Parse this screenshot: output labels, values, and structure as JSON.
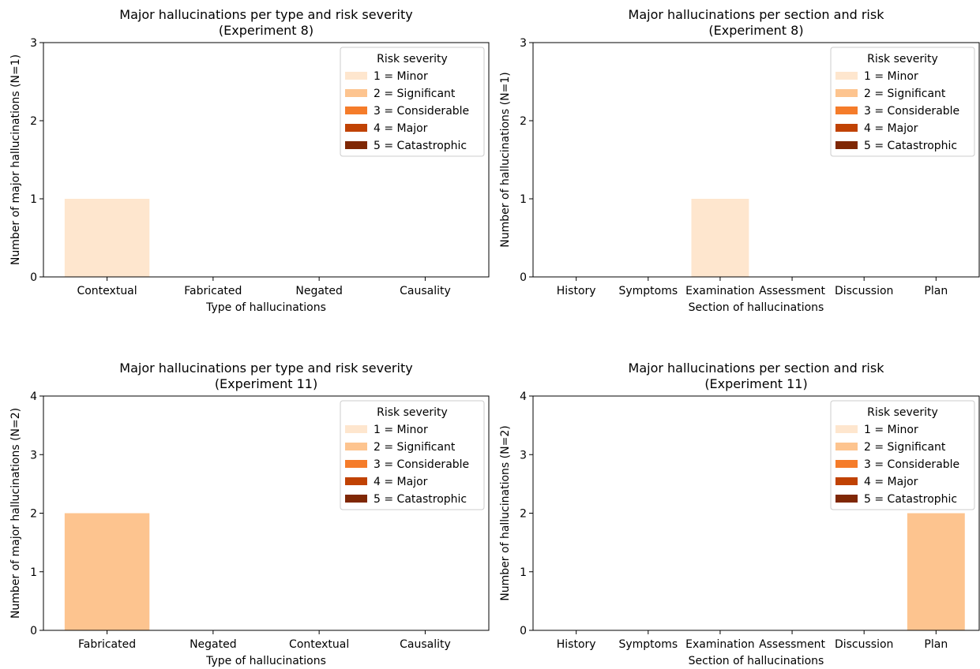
{
  "legend": {
    "title": "Risk severity",
    "entries": [
      {
        "label": "1 = Minor",
        "color": "#fee6ce"
      },
      {
        "label": "2 = Significant",
        "color": "#fdc48f"
      },
      {
        "label": "3 = Considerable",
        "color": "#f57c2a"
      },
      {
        "label": "4 = Major",
        "color": "#c04203"
      },
      {
        "label": "5 = Catastrophic",
        "color": "#7f2704"
      }
    ]
  },
  "chart_data": [
    {
      "type": "bar",
      "title": "Major hallucinations per type and risk severity\n(Experiment 8)",
      "xlabel": "Type of hallucinations",
      "ylabel": "Number of major hallucinations (N=1)",
      "categories": [
        "Contextual",
        "Fabricated",
        "Negated",
        "Causality"
      ],
      "ylim": [
        0,
        3
      ],
      "yticks": [
        0,
        1,
        2,
        3
      ],
      "stacked": true,
      "legend_position": "top-right",
      "series": [
        {
          "name": "1 = Minor",
          "values": [
            1,
            0,
            0,
            0
          ]
        },
        {
          "name": "2 = Significant",
          "values": [
            0,
            0,
            0,
            0
          ]
        },
        {
          "name": "3 = Considerable",
          "values": [
            0,
            0,
            0,
            0
          ]
        },
        {
          "name": "4 = Major",
          "values": [
            0,
            0,
            0,
            0
          ]
        },
        {
          "name": "5 = Catastrophic",
          "values": [
            0,
            0,
            0,
            0
          ]
        }
      ]
    },
    {
      "type": "bar",
      "title": "Major hallucinations per section and risk\n(Experiment 8)",
      "xlabel": "Section of hallucinations",
      "ylabel": "Number of hallucinations (N=1)",
      "categories": [
        "History",
        "Symptoms",
        "Examination",
        "Assessment",
        "Discussion",
        "Plan"
      ],
      "ylim": [
        0,
        3
      ],
      "yticks": [
        0,
        1,
        2,
        3
      ],
      "stacked": true,
      "legend_position": "top-right",
      "series": [
        {
          "name": "1 = Minor",
          "values": [
            0,
            0,
            1,
            0,
            0,
            0
          ]
        },
        {
          "name": "2 = Significant",
          "values": [
            0,
            0,
            0,
            0,
            0,
            0
          ]
        },
        {
          "name": "3 = Considerable",
          "values": [
            0,
            0,
            0,
            0,
            0,
            0
          ]
        },
        {
          "name": "4 = Major",
          "values": [
            0,
            0,
            0,
            0,
            0,
            0
          ]
        },
        {
          "name": "5 = Catastrophic",
          "values": [
            0,
            0,
            0,
            0,
            0,
            0
          ]
        }
      ]
    },
    {
      "type": "bar",
      "title": "Major hallucinations per type and risk severity\n(Experiment 11)",
      "xlabel": "Type of hallucinations",
      "ylabel": "Number of major hallucinations (N=2)",
      "categories": [
        "Fabricated",
        "Negated",
        "Contextual",
        "Causality"
      ],
      "ylim": [
        0,
        4
      ],
      "yticks": [
        0,
        1,
        2,
        3,
        4
      ],
      "stacked": true,
      "legend_position": "top-right",
      "series": [
        {
          "name": "1 = Minor",
          "values": [
            0,
            0,
            0,
            0
          ]
        },
        {
          "name": "2 = Significant",
          "values": [
            2,
            0,
            0,
            0
          ]
        },
        {
          "name": "3 = Considerable",
          "values": [
            0,
            0,
            0,
            0
          ]
        },
        {
          "name": "4 = Major",
          "values": [
            0,
            0,
            0,
            0
          ]
        },
        {
          "name": "5 = Catastrophic",
          "values": [
            0,
            0,
            0,
            0
          ]
        }
      ]
    },
    {
      "type": "bar",
      "title": "Major hallucinations per section and risk\n(Experiment 11)",
      "xlabel": "Section of hallucinations",
      "ylabel": "Number of hallucinations (N=2)",
      "categories": [
        "History",
        "Symptoms",
        "Examination",
        "Assessment",
        "Discussion",
        "Plan"
      ],
      "ylim": [
        0,
        4
      ],
      "yticks": [
        0,
        1,
        2,
        3,
        4
      ],
      "stacked": true,
      "legend_position": "top-right",
      "series": [
        {
          "name": "1 = Minor",
          "values": [
            0,
            0,
            0,
            0,
            0,
            0
          ]
        },
        {
          "name": "2 = Significant",
          "values": [
            0,
            0,
            0,
            0,
            0,
            2
          ]
        },
        {
          "name": "3 = Considerable",
          "values": [
            0,
            0,
            0,
            0,
            0,
            0
          ]
        },
        {
          "name": "4 = Major",
          "values": [
            0,
            0,
            0,
            0,
            0,
            0
          ]
        },
        {
          "name": "5 = Catastrophic",
          "values": [
            0,
            0,
            0,
            0,
            0,
            0
          ]
        }
      ]
    }
  ]
}
